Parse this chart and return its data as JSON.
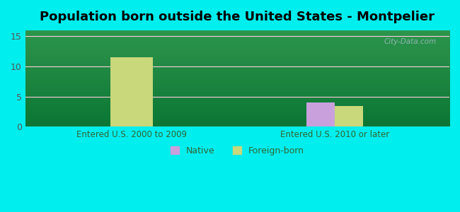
{
  "title": "Population born outside the United States - Montpelier",
  "groups": [
    "Entered U.S. 2000 to 2009",
    "Entered U.S. 2010 or later"
  ],
  "native_values": [
    0,
    4.0
  ],
  "foreign_values": [
    11.5,
    3.5
  ],
  "native_color": "#c9a0dc",
  "foreign_color": "#c8d87a",
  "background_color": "#00eeee",
  "ylim": [
    0,
    16
  ],
  "yticks": [
    0,
    5,
    10,
    15
  ],
  "bar_width": 0.32,
  "title_fontsize": 13,
  "axis_label_color": "#336633",
  "tick_label_color": "#555555",
  "grid_color": "#ffccdd",
  "watermark": "City-Data.com"
}
